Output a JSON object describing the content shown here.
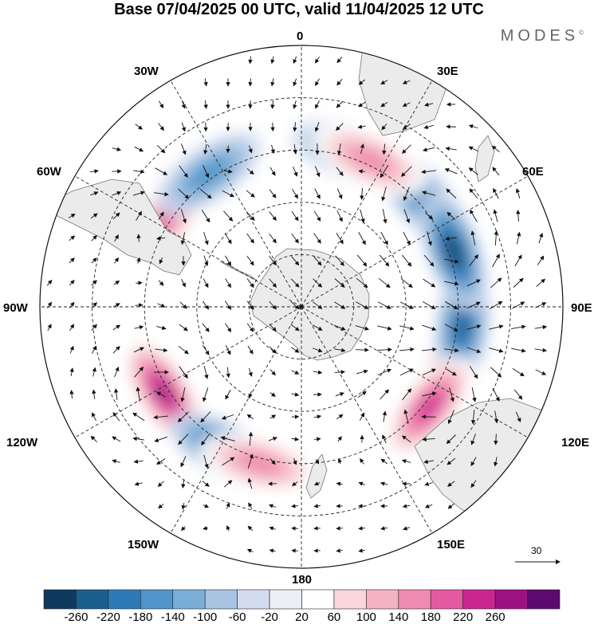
{
  "header": {
    "title": "Base 07/04/2025 00 UTC, valid 11/04/2025 12 UTC",
    "logo": "MODES",
    "logo_mark": "©"
  },
  "map": {
    "projection": "south-polar-stereographic",
    "longitude_labels": {
      "north": "0",
      "n30e": "30E",
      "n60e": "60E",
      "east": "90E",
      "s120e": "120E",
      "s150e": "150E",
      "south": "180",
      "s150w": "150W",
      "s120w": "120W",
      "west": "90W",
      "n60w": "60W",
      "n30w": "30W"
    },
    "anomaly_centers": [
      {
        "sign": "positive",
        "lon": 110,
        "value": 240
      },
      {
        "sign": "negative",
        "lon": 97,
        "value": -200
      },
      {
        "sign": "positive",
        "lon": 128,
        "value": 180
      },
      {
        "sign": "negative",
        "lon": 48,
        "value": -160
      },
      {
        "sign": "negative",
        "lon": 18,
        "value": -120
      },
      {
        "sign": "positive",
        "lon": 25,
        "value": 120
      },
      {
        "sign": "negative",
        "lon": 70,
        "value": -220
      },
      {
        "sign": "positive",
        "lon": -122,
        "value": 220
      },
      {
        "sign": "negative",
        "lon": -152,
        "value": -200
      },
      {
        "sign": "positive",
        "lon": -165,
        "value": 120
      },
      {
        "sign": "positive",
        "lon": -55,
        "value": 160
      },
      {
        "sign": "negative",
        "lon": -35,
        "value": -100
      }
    ],
    "vector_reference": "30"
  },
  "colorbar": {
    "ticks": [
      "-260",
      "-220",
      "-180",
      "-140",
      "-100",
      "-60",
      "-20",
      "20",
      "60",
      "100",
      "140",
      "180",
      "220",
      "260"
    ],
    "colors": [
      "#0e3a5f",
      "#1b5f8f",
      "#2e7ab6",
      "#4f95c9",
      "#7aaed6",
      "#a9c4e2",
      "#d3dcef",
      "#eeeef6",
      "#ffffff",
      "#f8d6d9",
      "#f4b3c0",
      "#ef8bb0",
      "#e45aa2",
      "#c92690",
      "#9b1284",
      "#5c0a6d"
    ]
  }
}
